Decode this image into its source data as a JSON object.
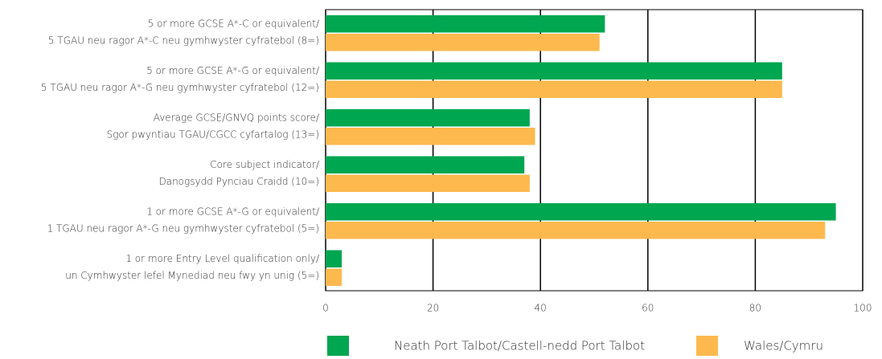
{
  "chart_data": {
    "type": "barh",
    "categories": [
      [
        "5 or more GCSE A*-C or equivalent/",
        "5 TGAU neu ragor A*-C neu gymhwyster cyfratebol (8=)"
      ],
      [
        "5 or more GCSE A*-G or equivalent/",
        "5 TGAU neu ragor A*-G neu gymhwyster cyfratebol (12=)"
      ],
      [
        "Average GCSE/GNVQ points score/",
        "Sgor pwyntiau TGAU/CGCC cyfartalog (13=)"
      ],
      [
        "Core subject indicator/",
        "Danogsydd Pynciau Craidd (10=)"
      ],
      [
        "1 or more GCSE A*-G or equivalent/",
        "1 TGAU neu ragor A*-G neu gymhwyster cyfratebol (5=)"
      ],
      [
        "1 or more Entry Level qualification only/",
        "un Cymhwyster lefel Mynediad neu fwy yn unig (5=)"
      ]
    ],
    "series": [
      {
        "name": "Neath Port Talbot/Castell-nedd Port Talbot",
        "color": "#00a650",
        "values": [
          52,
          85,
          38,
          37,
          95,
          3
        ]
      },
      {
        "name": "Wales/Cymru",
        "color": "#fdb94e",
        "values": [
          51,
          85,
          39,
          38,
          93,
          3
        ]
      }
    ],
    "xlim": [
      0,
      100
    ],
    "xticks": [
      0,
      20,
      40,
      60,
      80,
      100
    ],
    "grid": true,
    "legend": "bottom"
  }
}
